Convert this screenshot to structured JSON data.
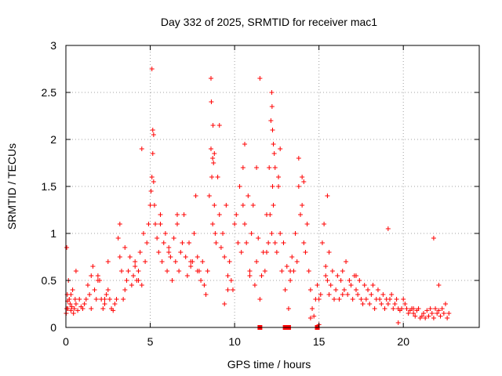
{
  "chart_data": {
    "type": "scatter",
    "title": "Day 332 of 2025, SRMTID for receiver mac1",
    "xlabel": "GPS time / hours",
    "ylabel": "SRMTID / TECUs",
    "xlim": [
      0,
      24.5
    ],
    "ylim": [
      0,
      3
    ],
    "xticks": [
      0,
      5,
      10,
      15,
      20
    ],
    "yticks": [
      0,
      0.5,
      1,
      1.5,
      2,
      2.5,
      3
    ],
    "xtick_labels": [
      "0",
      "5",
      "10",
      "15",
      "20"
    ],
    "ytick_labels": [
      "0",
      "0.5",
      "1",
      "1.5",
      "2",
      "2.5",
      "3"
    ],
    "grid": true,
    "marker": "plus",
    "series": [
      {
        "name": "mac1",
        "color": "#ff0000",
        "x": [
          0.02,
          0.05,
          0.08,
          0.12,
          0.15,
          0.2,
          0.25,
          0.3,
          0.35,
          0.4,
          0.45,
          0.5,
          0.55,
          0.6,
          0.7,
          0.8,
          0.9,
          1.0,
          1.1,
          1.2,
          1.3,
          1.4,
          1.5,
          1.6,
          1.7,
          1.8,
          1.9,
          2.0,
          2.1,
          2.2,
          2.3,
          2.4,
          2.5,
          2.6,
          2.7,
          2.8,
          2.9,
          3.0,
          3.1,
          3.2,
          3.3,
          3.4,
          3.5,
          3.6,
          3.7,
          3.8,
          3.9,
          4.0,
          4.1,
          4.2,
          4.3,
          4.4,
          4.5,
          4.6,
          4.7,
          4.8,
          4.9,
          5.0,
          5.05,
          5.1,
          5.15,
          5.2,
          5.25,
          5.3,
          5.4,
          5.5,
          5.6,
          5.7,
          5.8,
          5.9,
          6.0,
          6.1,
          6.2,
          6.3,
          6.4,
          6.5,
          6.6,
          6.7,
          6.8,
          6.9,
          7.0,
          7.1,
          7.2,
          7.3,
          7.4,
          7.5,
          7.6,
          7.7,
          7.8,
          7.9,
          8.0,
          8.1,
          8.2,
          8.3,
          8.4,
          8.5,
          8.6,
          8.65,
          8.7,
          8.75,
          8.8,
          8.85,
          8.9,
          9.0,
          9.1,
          9.2,
          9.3,
          9.4,
          9.5,
          9.6,
          9.7,
          9.8,
          9.9,
          10.0,
          10.1,
          10.2,
          10.3,
          10.4,
          10.5,
          10.6,
          10.7,
          10.8,
          10.9,
          11.0,
          11.1,
          11.2,
          11.3,
          11.4,
          11.5,
          11.6,
          11.7,
          11.8,
          11.9,
          12.0,
          12.05,
          12.1,
          12.15,
          12.2,
          12.25,
          12.3,
          12.4,
          12.5,
          12.6,
          12.7,
          12.8,
          12.9,
          13.0,
          13.1,
          13.2,
          13.3,
          13.4,
          13.5,
          13.6,
          13.7,
          13.8,
          13.9,
          14.0,
          14.1,
          14.2,
          14.3,
          14.4,
          14.5,
          14.6,
          14.7,
          14.8,
          14.9,
          15.0,
          15.1,
          15.2,
          15.3,
          15.4,
          15.5,
          15.6,
          15.7,
          15.8,
          15.9,
          16.0,
          16.1,
          16.2,
          16.3,
          16.4,
          16.5,
          16.6,
          16.7,
          16.8,
          16.9,
          17.0,
          17.1,
          17.2,
          17.3,
          17.4,
          17.5,
          17.6,
          17.7,
          17.8,
          17.9,
          18.0,
          18.1,
          18.2,
          18.3,
          18.4,
          18.5,
          18.6,
          18.7,
          18.8,
          18.9,
          19.0,
          19.1,
          19.2,
          19.3,
          19.4,
          19.5,
          19.6,
          19.7,
          19.8,
          19.9,
          20.0,
          20.1,
          20.2,
          20.3,
          20.4,
          20.5,
          20.6,
          20.7,
          20.8,
          20.9,
          21.0,
          21.1,
          21.2,
          21.3,
          21.4,
          21.5,
          21.6,
          21.7,
          21.8,
          21.9,
          22.0,
          22.1,
          22.2,
          22.3,
          22.4,
          22.5,
          22.6,
          22.7,
          0.1,
          0.3,
          0.6,
          1.5,
          2.5,
          3.5,
          4.5,
          5.15,
          5.2,
          5.1,
          8.6,
          8.62,
          8.7,
          8.72,
          8.8,
          9.1,
          10.5,
          10.6,
          11.3,
          11.5,
          12.2,
          12.22,
          12.25,
          12.3,
          12.35,
          12.4,
          12.6,
          12.7,
          13.8,
          14.0,
          14.1,
          15.5,
          15.6,
          17.2,
          18.2,
          19.1,
          3.2,
          4.3,
          6.6,
          7.4,
          9.6,
          10.9,
          13.3,
          16.4,
          21.8,
          0.05,
          1.9,
          6.1,
          9.4,
          14.5,
          19.7,
          20.6,
          22.1,
          4.1,
          11.9,
          2.3,
          7.8,
          5.6,
          15.4,
          17.9,
          12.9,
          13.2,
          14.8,
          15.0
        ],
        "y": [
          0.15,
          0.85,
          0.35,
          0.2,
          0.5,
          0.3,
          0.25,
          0.18,
          0.22,
          0.4,
          0.15,
          0.2,
          0.3,
          0.25,
          0.18,
          0.3,
          0.22,
          0.2,
          0.25,
          0.3,
          0.45,
          0.35,
          0.2,
          0.65,
          0.4,
          0.3,
          0.55,
          0.5,
          0.3,
          0.2,
          0.25,
          0.35,
          0.4,
          0.3,
          0.2,
          0.18,
          0.25,
          0.3,
          0.95,
          1.1,
          0.6,
          0.3,
          0.4,
          0.5,
          0.6,
          0.75,
          0.45,
          0.55,
          0.7,
          0.5,
          0.6,
          0.8,
          0.45,
          1.0,
          0.7,
          0.9,
          1.1,
          1.3,
          1.45,
          1.6,
          1.85,
          2.05,
          1.3,
          1.1,
          0.95,
          0.8,
          1.2,
          0.7,
          0.9,
          1.0,
          0.6,
          0.85,
          0.75,
          0.5,
          0.95,
          0.7,
          1.1,
          0.6,
          0.8,
          0.9,
          1.2,
          0.75,
          0.55,
          0.9,
          0.65,
          0.7,
          1.0,
          1.4,
          0.75,
          0.6,
          0.5,
          0.7,
          0.45,
          0.35,
          0.6,
          1.4,
          1.9,
          1.6,
          1.1,
          1.75,
          1.3,
          1.0,
          0.9,
          1.6,
          1.2,
          0.85,
          1.0,
          0.75,
          1.3,
          0.55,
          0.7,
          0.5,
          0.4,
          1.1,
          1.2,
          0.9,
          1.5,
          0.8,
          1.3,
          1.1,
          0.9,
          1.4,
          0.6,
          1.0,
          1.3,
          0.45,
          0.7,
          0.95,
          0.3,
          0.55,
          0.8,
          0.6,
          1.2,
          0.9,
          1.7,
          1.2,
          2.2,
          1.0,
          1.5,
          1.3,
          0.9,
          0.8,
          1.5,
          1.0,
          0.6,
          0.9,
          0.4,
          0.65,
          0.2,
          0.5,
          0.75,
          0.6,
          1.0,
          0.7,
          1.5,
          1.2,
          1.3,
          0.9,
          0.8,
          1.1,
          0.6,
          0.4,
          0.2,
          0.12,
          0.3,
          0.45,
          0.3,
          0.35,
          0.9,
          1.1,
          0.65,
          0.5,
          0.35,
          0.45,
          0.6,
          0.3,
          0.4,
          0.55,
          0.3,
          0.5,
          0.6,
          0.4,
          0.7,
          0.35,
          0.5,
          0.45,
          0.3,
          0.55,
          0.4,
          0.35,
          0.5,
          0.3,
          0.25,
          0.45,
          0.3,
          0.4,
          0.25,
          0.35,
          0.45,
          0.2,
          0.3,
          0.4,
          0.3,
          0.25,
          0.35,
          0.2,
          0.3,
          0.25,
          0.3,
          0.35,
          0.2,
          0.25,
          0.3,
          0.2,
          0.18,
          0.2,
          0.3,
          0.25,
          0.2,
          0.15,
          0.18,
          0.2,
          0.15,
          0.12,
          0.18,
          0.2,
          0.1,
          0.12,
          0.15,
          0.1,
          0.18,
          0.12,
          0.2,
          0.15,
          0.1,
          0.2,
          0.15,
          0.18,
          0.12,
          0.2,
          0.15,
          0.25,
          0.1,
          0.15,
          0.28,
          0.35,
          0.6,
          0.55,
          0.7,
          0.85,
          1.9,
          2.1,
          1.55,
          2.75,
          2.65,
          2.4,
          1.8,
          2.15,
          1.85,
          2.15,
          1.7,
          1.95,
          1.7,
          2.65,
          2.5,
          2.35,
          2.1,
          1.95,
          1.85,
          1.7,
          1.6,
          1.9,
          1.8,
          1.6,
          1.55,
          1.4,
          0.8,
          0.55,
          0.45,
          1.05,
          0.75,
          0.5,
          1.2,
          0.7,
          0.4,
          0.55,
          0.6,
          0.35,
          0.95,
          0.2,
          0.5,
          0.8,
          0.25,
          0.1,
          0.05,
          0.2,
          0.45,
          0.65,
          0.8,
          0.3,
          0.6,
          1.1,
          0.55,
          0.4,
          0.0,
          0.0,
          0.0,
          0.03
        ]
      }
    ],
    "zero_markers": [
      {
        "x": 11.5,
        "y": 0.0
      },
      {
        "x": 13.0,
        "y": 0.0
      },
      {
        "x": 13.2,
        "y": 0.0
      },
      {
        "x": 14.9,
        "y": 0.0
      }
    ]
  }
}
